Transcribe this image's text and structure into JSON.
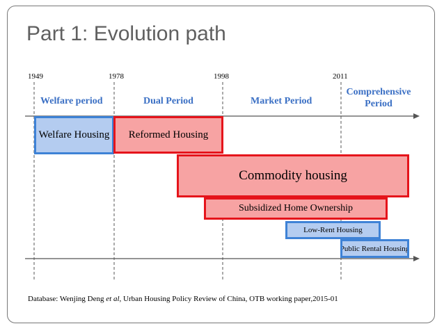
{
  "title": "Part 1: Evolution path",
  "years": [
    "1949",
    "1978",
    "1998",
    "2011"
  ],
  "periods": {
    "welfare": "Welfare period",
    "dual": "Dual  Period",
    "market": "Market Period",
    "comprehensive_line1": "Comprehensive",
    "comprehensive_line2": "Period"
  },
  "bars": {
    "welfare_housing": "Welfare Housing",
    "reformed_housing": "Reformed Housing",
    "commodity_housing": "Commodity housing",
    "subsidized_home_ownership": "Subsidized Home Ownership",
    "low_rent_housing": "Low-Rent Housing",
    "public_rental_housing": "Public Rental Housing"
  },
  "source": {
    "prefix": "Database: Wenjing Deng ",
    "etal": "et al",
    "suffix": ", Urban Housing Policy Review of China, OTB working paper,2015-01"
  },
  "colors": {
    "red_fill": "#f7a3a3",
    "red_border": "#e5141b",
    "blue_fill": "#b4ccf0",
    "blue_border": "#3e82d6",
    "period_text": "#3a6fc4"
  }
}
